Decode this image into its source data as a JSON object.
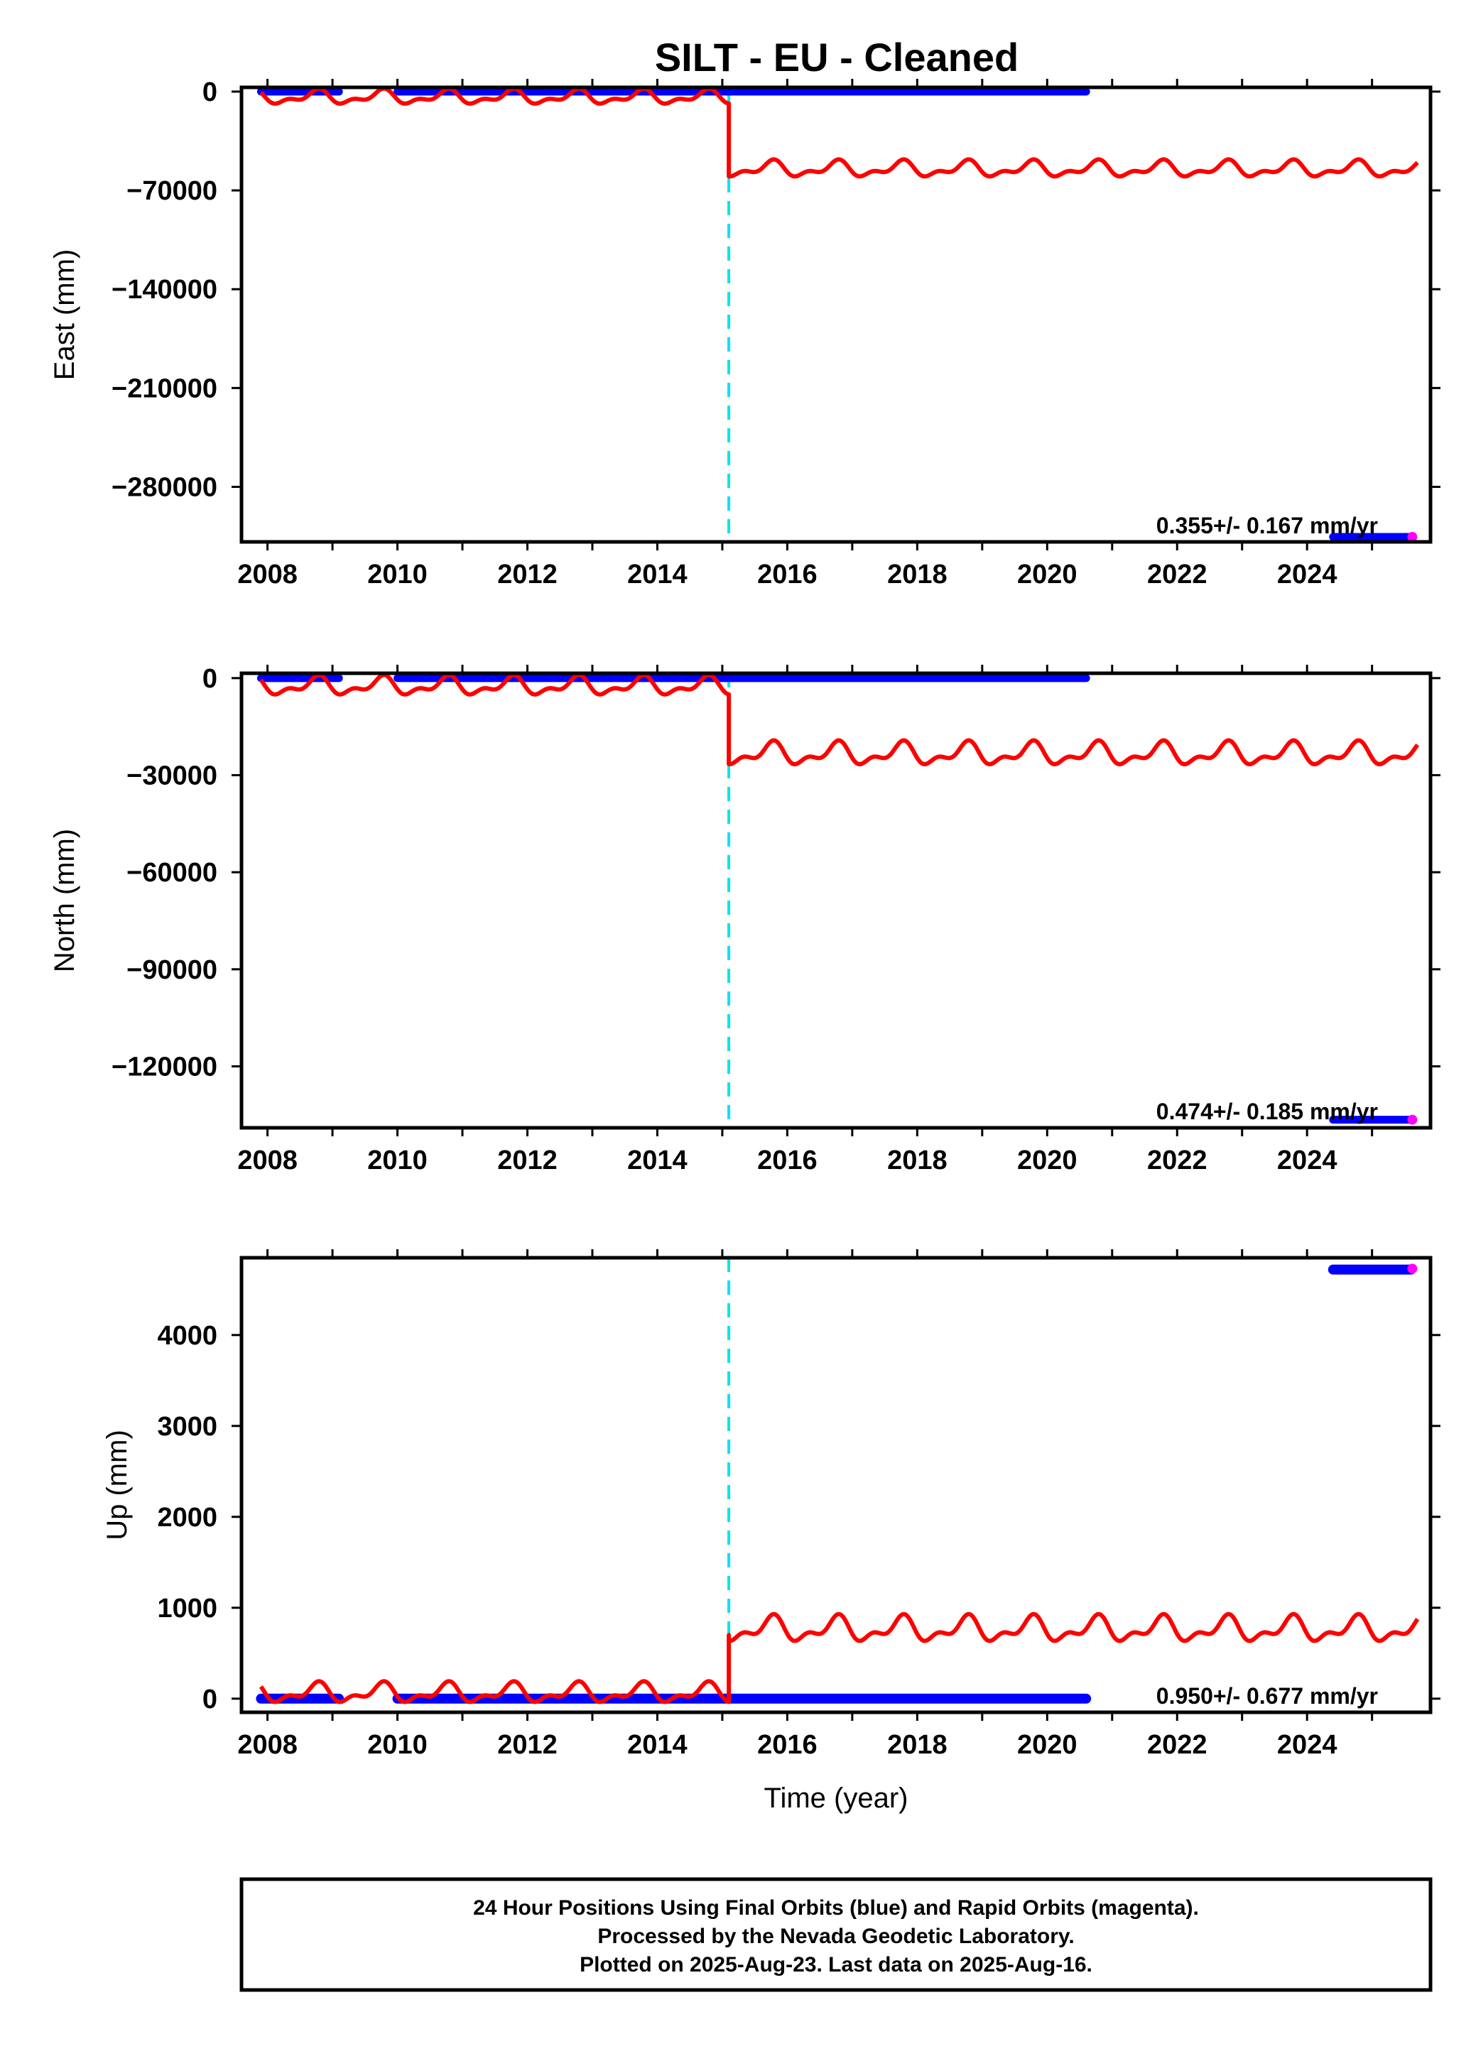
{
  "title": "SILT  - EU - Cleaned",
  "colors": {
    "final_orbits": "#0000ff",
    "rapid_orbits": "#ff00ff",
    "model": "#ff0000",
    "offset_line": "#00e5ee",
    "frame": "#000000"
  },
  "chart_data": [
    {
      "type": "scatter",
      "component": "east",
      "ylabel": "East (mm)",
      "xlabel": "",
      "xlim": [
        2007.6,
        2025.9
      ],
      "ylim": [
        -319000,
        3000
      ],
      "yticks": [
        0,
        -70000,
        -140000,
        -210000,
        -280000
      ],
      "ytick_labels": [
        "0",
        "−70000",
        "−140000",
        "−210000",
        "−280000"
      ],
      "xticks": [
        2008,
        2010,
        2012,
        2014,
        2016,
        2018,
        2020,
        2022,
        2024
      ],
      "xtick_labels": [
        "2008",
        "2010",
        "2012",
        "2014",
        "2016",
        "2018",
        "2020",
        "2022",
        "2024"
      ],
      "rate_label": "0.355+/- 0.167 mm/yr",
      "offset_epoch": 2015.1,
      "final_segments": [
        {
          "start": 2007.9,
          "end": 2009.1,
          "value": 0
        },
        {
          "start": 2010.0,
          "end": 2020.6,
          "value": 0
        },
        {
          "start": 2024.4,
          "end": 2025.6,
          "value": -315500
        }
      ],
      "rapid_points": [
        {
          "x": 2025.62,
          "y": -315500
        }
      ],
      "model": {
        "pre": {
          "start": 2007.9,
          "end": 2015.1,
          "level": -4000,
          "amplitude": 8000
        },
        "post": {
          "start": 2015.1,
          "end": 2025.7,
          "level": -55000,
          "amplitude": 9000
        },
        "post_jump_start": -45000
      }
    },
    {
      "type": "scatter",
      "component": "north",
      "ylabel": "North (mm)",
      "xlabel": "",
      "xlim": [
        2007.6,
        2025.9
      ],
      "ylim": [
        -139000,
        1500
      ],
      "yticks": [
        0,
        -30000,
        -60000,
        -90000,
        -120000
      ],
      "ytick_labels": [
        "0",
        "−30000",
        "−60000",
        "−90000",
        "−120000"
      ],
      "xticks": [
        2008,
        2010,
        2012,
        2014,
        2016,
        2018,
        2020,
        2022,
        2024
      ],
      "xtick_labels": [
        "2008",
        "2010",
        "2012",
        "2014",
        "2016",
        "2018",
        "2020",
        "2022",
        "2024"
      ],
      "rate_label": "0.474+/- 0.185 mm/yr",
      "offset_epoch": 2015.1,
      "final_segments": [
        {
          "start": 2007.9,
          "end": 2009.1,
          "value": 0
        },
        {
          "start": 2010.0,
          "end": 2020.6,
          "value": 0
        },
        {
          "start": 2024.4,
          "end": 2025.6,
          "value": -136500
        }
      ],
      "rapid_points": [
        {
          "x": 2025.62,
          "y": -136500
        }
      ],
      "model": {
        "pre": {
          "start": 2007.9,
          "end": 2015.1,
          "level": -2500,
          "amplitude": 4500
        },
        "post": {
          "start": 2015.1,
          "end": 2025.7,
          "level": -23500,
          "amplitude": 5500
        },
        "post_jump_start": -21000
      }
    },
    {
      "type": "scatter",
      "component": "up",
      "ylabel": "Up (mm)",
      "xlabel": "Time (year)",
      "xlim": [
        2007.6,
        2025.9
      ],
      "ylim": [
        -150,
        4850
      ],
      "yticks": [
        0,
        1000,
        2000,
        3000,
        4000
      ],
      "ytick_labels": [
        "0",
        "1000",
        "2000",
        "3000",
        "4000"
      ],
      "xticks": [
        2008,
        2010,
        2012,
        2014,
        2016,
        2018,
        2020,
        2022,
        2024
      ],
      "xtick_labels": [
        "2008",
        "2010",
        "2012",
        "2014",
        "2016",
        "2018",
        "2020",
        "2022",
        "2024"
      ],
      "rate_label": "0.950+/- 0.677 mm/yr",
      "offset_epoch": 2015.1,
      "final_segments": [
        {
          "start": 2007.9,
          "end": 2009.1,
          "value": 0
        },
        {
          "start": 2010.0,
          "end": 2020.6,
          "value": 0
        },
        {
          "start": 2024.4,
          "end": 2025.6,
          "value": 4720
        }
      ],
      "rapid_points": [
        {
          "x": 2025.62,
          "y": 4730
        }
      ],
      "model": {
        "pre": {
          "start": 2007.9,
          "end": 2015.1,
          "level": 60,
          "amplitude": 170
        },
        "post": {
          "start": 2015.1,
          "end": 2025.7,
          "level": 760,
          "amplitude": 220
        },
        "post_jump_start": 700
      }
    }
  ],
  "footer": {
    "line1": "24 Hour Positions Using Final Orbits (blue) and Rapid Orbits (magenta).",
    "line2": "Processed by the Nevada Geodetic Laboratory.",
    "line3": "Plotted on 2025-Aug-23. Last data on 2025-Aug-16."
  }
}
